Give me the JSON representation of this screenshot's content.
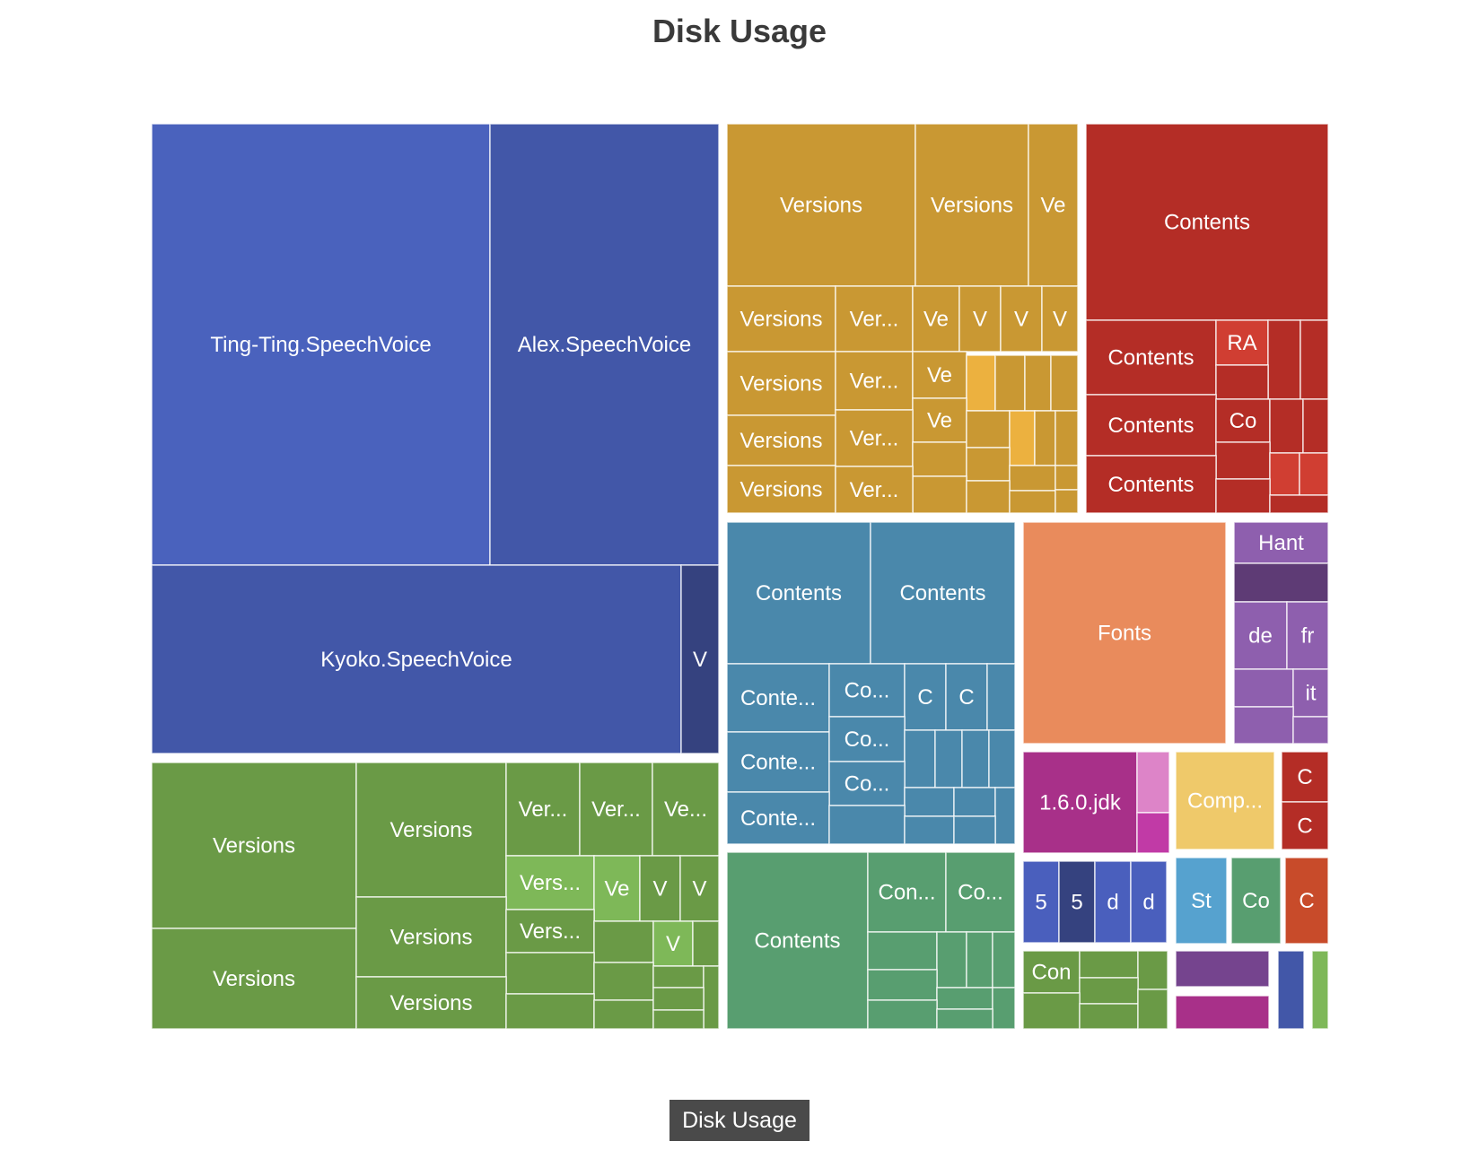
{
  "chart_data": {
    "type": "treemap",
    "title": "Disk Usage",
    "breadcrumb": "Disk Usage",
    "groups": [
      {
        "color": "#4a62bd",
        "cells": [
          {
            "label": "Ting-Ting.SpeechVoice",
            "color": "#4a62bd"
          },
          {
            "label": "Alex.SpeechVoice",
            "color": "#4257a8"
          },
          {
            "label": "Kyoko.SpeechVoice",
            "color": "#4257a8"
          },
          {
            "label": "V",
            "color": "#35427f"
          }
        ]
      },
      {
        "color": "#c99833",
        "cells": [
          {
            "label": "Versions"
          },
          {
            "label": "Versions"
          },
          {
            "label": "Ve"
          },
          {
            "label": "Versions"
          },
          {
            "label": "Ver..."
          },
          {
            "label": "Ve"
          },
          {
            "label": "V"
          },
          {
            "label": "V"
          },
          {
            "label": "V"
          },
          {
            "label": "Versions"
          },
          {
            "label": "Ver..."
          },
          {
            "label": "Ve"
          },
          {
            "label": "Versions"
          },
          {
            "label": "Ver..."
          },
          {
            "label": "Ve"
          },
          {
            "label": "Versions"
          },
          {
            "label": "Ver..."
          }
        ]
      },
      {
        "color": "#b42d26",
        "cells": [
          {
            "label": "Contents"
          },
          {
            "label": "Contents"
          },
          {
            "label": "RA"
          },
          {
            "label": "Contents"
          },
          {
            "label": "Co"
          },
          {
            "label": "Contents"
          }
        ]
      },
      {
        "color": "#6a9a46",
        "cells": [
          {
            "label": "Versions"
          },
          {
            "label": "Versions"
          },
          {
            "label": "Ver..."
          },
          {
            "label": "Ver..."
          },
          {
            "label": "Ve..."
          },
          {
            "label": "Vers..."
          },
          {
            "label": "Ve"
          },
          {
            "label": "V"
          },
          {
            "label": "V"
          },
          {
            "label": "Versions"
          },
          {
            "label": "Versions"
          },
          {
            "label": "Vers..."
          },
          {
            "label": "V"
          },
          {
            "label": "Versions"
          }
        ]
      },
      {
        "color": "#4a88ab",
        "cells": [
          {
            "label": "Contents"
          },
          {
            "label": "Contents"
          },
          {
            "label": "Conte..."
          },
          {
            "label": "Co..."
          },
          {
            "label": "C"
          },
          {
            "label": "C"
          },
          {
            "label": "Conte..."
          },
          {
            "label": "Co..."
          },
          {
            "label": "Co..."
          },
          {
            "label": "Conte..."
          }
        ]
      },
      {
        "color": "#589e70",
        "cells": [
          {
            "label": "Contents"
          },
          {
            "label": "Con..."
          },
          {
            "label": "Co..."
          }
        ]
      },
      {
        "color": "#e98b5c",
        "cells": [
          {
            "label": "Fonts"
          }
        ]
      },
      {
        "color": "#8e5fae",
        "cells": [
          {
            "label": "Hant"
          },
          {
            "label": "de"
          },
          {
            "label": "fr"
          },
          {
            "label": "it"
          }
        ]
      },
      {
        "color": "#a83089",
        "cells": [
          {
            "label": "1.6.0.jdk"
          }
        ]
      },
      {
        "color": "#efc96a",
        "cells": [
          {
            "label": "Comp..."
          }
        ]
      },
      {
        "color": "#b42d26",
        "cells": [
          {
            "label": "C"
          },
          {
            "label": "C"
          }
        ]
      },
      {
        "color": "#4a5fbd",
        "cells": [
          {
            "label": "5"
          },
          {
            "label": "5"
          },
          {
            "label": "d"
          },
          {
            "label": "d"
          }
        ]
      },
      {
        "color": "#56a2cf",
        "cells": [
          {
            "label": "St"
          }
        ]
      },
      {
        "color": "#589e70",
        "cells": [
          {
            "label": "Co"
          }
        ]
      },
      {
        "color": "#c84b2a",
        "cells": [
          {
            "label": "C"
          }
        ]
      },
      {
        "color": "#6a9a46",
        "cells": [
          {
            "label": "Con"
          }
        ]
      }
    ]
  }
}
